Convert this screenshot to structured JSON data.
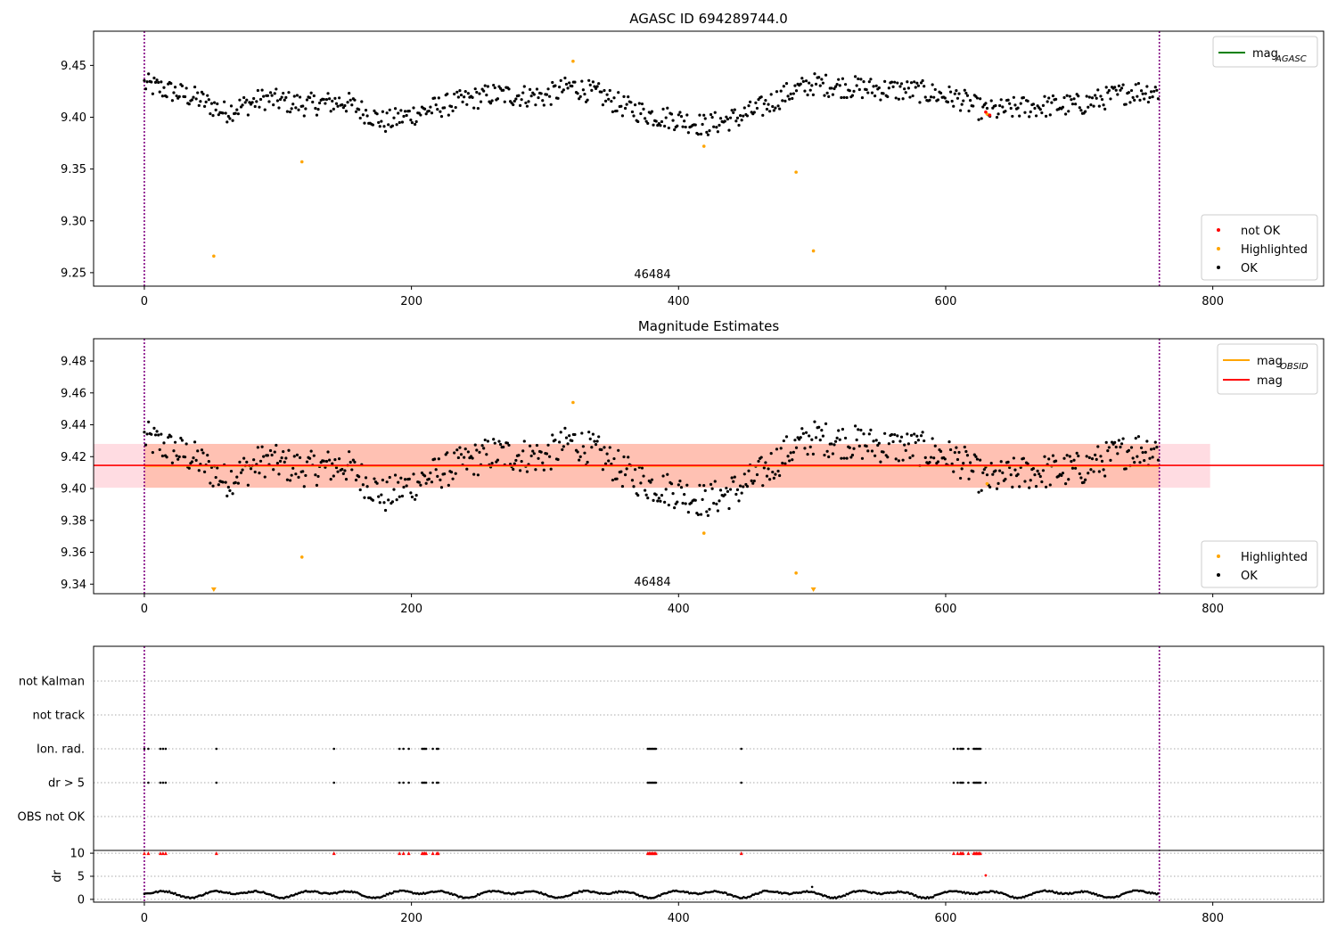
{
  "colors": {
    "ok": "#000000",
    "highlighted": "#ffa500",
    "not_ok": "#ff0000",
    "mag_agasc": "#008000",
    "mag_obsid": "#ffa500",
    "mag": "#ff0000",
    "obs_window": "#800080",
    "band_mag": "#ffc0cb",
    "band_obsid": "#ffa07a"
  },
  "chart_data": [
    {
      "id": "panel1",
      "type": "scatter",
      "title": "AGASC ID 694289744.0",
      "xlabel": "",
      "ylabel": "",
      "xlim": [
        -38,
        883
      ],
      "ylim": [
        9.237,
        9.483
      ],
      "xticks": [
        0,
        200,
        400,
        600,
        800
      ],
      "yticks": [
        9.25,
        9.3,
        9.35,
        9.4,
        9.45
      ],
      "ytick_labels": [
        "9.25",
        "9.30",
        "9.35",
        "9.40",
        "9.45"
      ],
      "obs_bounds": [
        0,
        760
      ],
      "obs_label": "46484",
      "obs_label_x": 380,
      "legend_lines": [
        {
          "label_main": "mag",
          "label_sub": "AGASC",
          "color": "#008000"
        }
      ],
      "legend_points": [
        "not OK",
        "Highlighted",
        "OK"
      ],
      "series": [
        {
          "name": "OK",
          "color": "#000000",
          "wave": "main"
        },
        {
          "name": "Highlighted",
          "color": "#ffa500",
          "points": [
            [
              52,
              9.266
            ],
            [
              118,
              9.357
            ],
            [
              321,
              9.454
            ],
            [
              419,
              9.372
            ],
            [
              488,
              9.347
            ],
            [
              501,
              9.271
            ],
            [
              631,
              9.403
            ]
          ]
        },
        {
          "name": "not OK",
          "color": "#ff0000",
          "points": [
            [
              630,
              9.405
            ],
            [
              633,
              9.402
            ]
          ]
        }
      ]
    },
    {
      "id": "panel2",
      "type": "scatter",
      "title": "Magnitude Estimates",
      "xlabel": "",
      "ylabel": "",
      "xlim": [
        -38,
        883
      ],
      "ylim": [
        9.334,
        9.494
      ],
      "xticks": [
        0,
        200,
        400,
        600,
        800
      ],
      "yticks": [
        9.34,
        9.36,
        9.38,
        9.4,
        9.42,
        9.44,
        9.46,
        9.48
      ],
      "ytick_labels": [
        "9.34",
        "9.36",
        "9.38",
        "9.40",
        "9.42",
        "9.44",
        "9.46",
        "9.48"
      ],
      "obs_bounds": [
        0,
        760
      ],
      "obs_label": "46484",
      "obs_label_x": 380,
      "mag": 9.4145,
      "mag_obsid": 9.4142,
      "band_mag": [
        9.4005,
        9.428
      ],
      "band_mag_x": [
        -38,
        798
      ],
      "band_obsid": [
        9.4005,
        9.428
      ],
      "band_obsid_x": [
        0,
        760
      ],
      "legend_lines": [
        {
          "label_main": "mag",
          "label_sub": "OBSID",
          "color": "#ffa500"
        },
        {
          "label_main": "mag",
          "label_sub": "",
          "color": "#ff0000"
        }
      ],
      "legend_points": [
        "Highlighted",
        "OK"
      ],
      "series": [
        {
          "name": "OK",
          "color": "#000000",
          "wave": "main"
        },
        {
          "name": "Highlighted",
          "color": "#ffa500",
          "points": [
            [
              118,
              9.357
            ],
            [
              321,
              9.454
            ],
            [
              419,
              9.372
            ],
            [
              488,
              9.347
            ],
            [
              631,
              9.403
            ]
          ]
        },
        {
          "name": "Highlighted-clipped",
          "color": "#ffa500",
          "triangles": [
            52,
            501
          ]
        }
      ]
    },
    {
      "id": "panel3",
      "type": "scatter",
      "xlim": [
        -38,
        883
      ],
      "xticks": [
        0,
        200,
        400,
        600,
        800
      ],
      "flag_labels": [
        "not Kalman",
        "not track",
        "Ion. rad.",
        "dr > 5",
        "OBS not OK"
      ],
      "flag_points": {
        "Ion. rad.": [
          0,
          3,
          12,
          14,
          16,
          54,
          142,
          191,
          194,
          198,
          208,
          209,
          210,
          211,
          216,
          219,
          220,
          377,
          378,
          379,
          380,
          381,
          382,
          383,
          447,
          606,
          609,
          611,
          612,
          613,
          617,
          621,
          622,
          623,
          624,
          625,
          626
        ],
        "dr > 5": [
          0,
          3,
          12,
          14,
          16,
          54,
          142,
          191,
          194,
          198,
          208,
          209,
          210,
          211,
          216,
          219,
          220,
          377,
          378,
          379,
          380,
          381,
          382,
          383,
          447,
          606,
          609,
          611,
          612,
          613,
          617,
          621,
          622,
          623,
          624,
          625,
          626,
          630
        ]
      },
      "dr_ylabel": "dr",
      "dr_yticks": [
        0,
        5,
        10
      ],
      "dr_ylim": [
        -0.6,
        10.6
      ],
      "dr_flag_x": [
        0,
        3,
        12,
        14,
        16,
        54,
        142,
        191,
        194,
        198,
        208,
        209,
        210,
        211,
        216,
        219,
        220,
        377,
        378,
        379,
        380,
        381,
        382,
        383,
        447,
        606,
        609,
        611,
        612,
        613,
        617,
        621,
        622,
        623,
        624,
        625,
        626
      ],
      "dr_outliers": [
        [
          630,
          5.2
        ]
      ],
      "dr_extra": [
        [
          500,
          2.7
        ]
      ]
    }
  ]
}
